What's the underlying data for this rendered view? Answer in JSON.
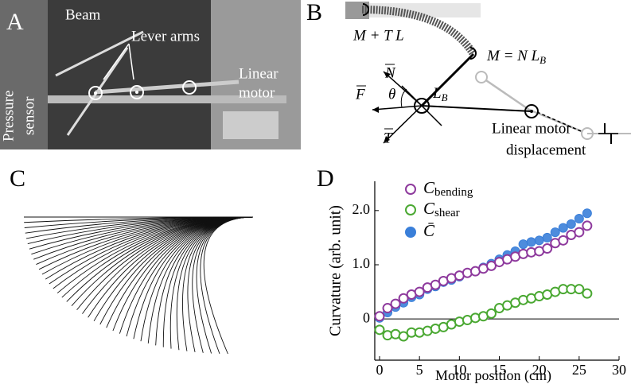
{
  "panels": {
    "a": "A",
    "b": "B",
    "c": "C",
    "d": "D"
  },
  "photo": {
    "beam": "Beam",
    "lever_arms": "Lever arms",
    "pressure": "Pressure",
    "sensor": "sensor",
    "linear": "Linear",
    "motor": "motor"
  },
  "diagram": {
    "mtl": "M + T L",
    "mnl": "M = N L",
    "mnl_sub": "B",
    "n": "N",
    "f": "F",
    "theta": "θ",
    "lb": "L",
    "lb_sub": "B",
    "t": "T",
    "disp1": "Linear motor",
    "disp2": "displacement"
  },
  "chart_data": {
    "type": "scatter",
    "xlabel": "Motor position (cm)",
    "ylabel": "Curvature (arb. unit)",
    "x": [
      0,
      1,
      2,
      3,
      4,
      5,
      6,
      7,
      8,
      9,
      10,
      11,
      12,
      13,
      14,
      15,
      16,
      17,
      18,
      19,
      20,
      21,
      22,
      23,
      24,
      25,
      26
    ],
    "series": [
      {
        "name": "C_bending",
        "color": "#8e3a9d",
        "filled": false,
        "values": [
          0.05,
          0.2,
          0.28,
          0.38,
          0.45,
          0.5,
          0.58,
          0.63,
          0.7,
          0.75,
          0.8,
          0.85,
          0.88,
          0.93,
          0.98,
          1.05,
          1.1,
          1.15,
          1.2,
          1.23,
          1.25,
          1.3,
          1.4,
          1.45,
          1.55,
          1.6,
          1.72
        ]
      },
      {
        "name": "C_shear",
        "color": "#4aa832",
        "filled": false,
        "values": [
          -0.2,
          -0.3,
          -0.28,
          -0.32,
          -0.25,
          -0.25,
          -0.22,
          -0.18,
          -0.15,
          -0.1,
          -0.05,
          -0.02,
          0.02,
          0.05,
          0.1,
          0.2,
          0.25,
          0.3,
          0.35,
          0.38,
          0.42,
          0.45,
          0.5,
          0.55,
          0.55,
          0.55,
          0.47
        ]
      },
      {
        "name": "C̄",
        "color": "#3a7fd9",
        "filled": true,
        "values": [
          0.02,
          0.12,
          0.22,
          0.3,
          0.4,
          0.45,
          0.55,
          0.6,
          0.68,
          0.72,
          0.78,
          0.85,
          0.88,
          0.95,
          1.02,
          1.1,
          1.18,
          1.25,
          1.38,
          1.42,
          1.45,
          1.5,
          1.6,
          1.68,
          1.75,
          1.85,
          1.95
        ]
      }
    ],
    "xlim": [
      -0.6,
      30
    ],
    "ylim": [
      -0.76,
      2.54
    ],
    "xticks": [
      0,
      5,
      10,
      15,
      20,
      25,
      30
    ],
    "yticks": [
      0,
      {
        "value": 1,
        "label": "1.0"
      },
      {
        "value": 2,
        "label": "2.0"
      }
    ],
    "legend": "upper left"
  }
}
